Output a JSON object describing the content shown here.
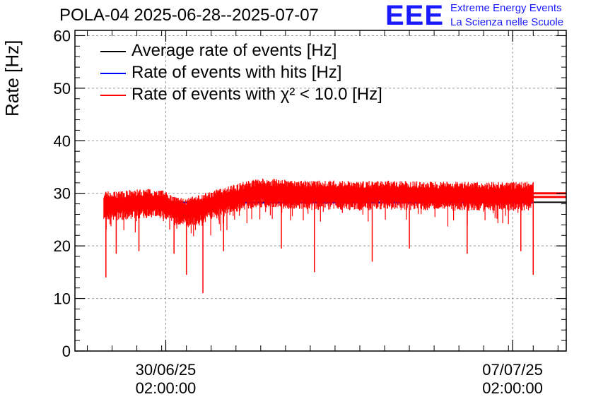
{
  "chart_data": {
    "type": "line",
    "title": "POLA-04 2025-06-28--2025-07-07",
    "ylabel": "Rate [Hz]",
    "xlabel": "",
    "ylim": [
      0,
      61
    ],
    "y_ticks": [
      "0",
      "10",
      "20",
      "30",
      "40",
      "50",
      "60"
    ],
    "x_ticks": [
      {
        "date": "30/06/25",
        "time": "02:00:00",
        "value": "2025-06-30T02:00:00"
      },
      {
        "date": "07/07/25",
        "time": "02:00:00",
        "value": "2025-07-07T02:00:00"
      }
    ],
    "xlim": [
      "2025-06-28T06:00:00",
      "2025-07-08T04:00:00"
    ],
    "grid": true,
    "legend_position": "top-left",
    "series": [
      {
        "name": "Average rate of events [Hz]",
        "color": "#000000",
        "values": [
          {
            "x": "2025-06-28T20:00:00",
            "y": 28.3
          },
          {
            "x": "2025-07-08T04:00:00",
            "y": 28.3
          }
        ]
      },
      {
        "name": "Rate of events with hits [Hz]",
        "color": "#0000ff",
        "values": [
          {
            "x": "2025-06-28T20:00:00",
            "y": 28.2
          },
          {
            "x": "2025-07-07T12:00:00",
            "y": 28.2
          }
        ]
      },
      {
        "name": "Rate of events with χ² < 10.0 [Hz]",
        "color": "#ff0000",
        "values": [
          {
            "x": "2025-06-28T20:00:00",
            "y": 28.0
          },
          {
            "x": "2025-06-29T00:00:00",
            "y": 27.8
          },
          {
            "x": "2025-06-29T06:00:00",
            "y": 27.9
          },
          {
            "x": "2025-06-29T12:00:00",
            "y": 28.2
          },
          {
            "x": "2025-06-29T18:00:00",
            "y": 28.3
          },
          {
            "x": "2025-06-30T00:00:00",
            "y": 28.1
          },
          {
            "x": "2025-06-30T06:00:00",
            "y": 26.9
          },
          {
            "x": "2025-06-30T12:00:00",
            "y": 26.4
          },
          {
            "x": "2025-06-30T18:00:00",
            "y": 27.2
          },
          {
            "x": "2025-07-01T00:00:00",
            "y": 27.9
          },
          {
            "x": "2025-07-01T06:00:00",
            "y": 28.5
          },
          {
            "x": "2025-07-01T12:00:00",
            "y": 29.2
          },
          {
            "x": "2025-07-01T18:00:00",
            "y": 29.8
          },
          {
            "x": "2025-07-02T00:00:00",
            "y": 30.3
          },
          {
            "x": "2025-07-02T12:00:00",
            "y": 30.0
          },
          {
            "x": "2025-07-03T00:00:00",
            "y": 29.8
          },
          {
            "x": "2025-07-03T12:00:00",
            "y": 29.9
          },
          {
            "x": "2025-07-04T00:00:00",
            "y": 29.7
          },
          {
            "x": "2025-07-04T12:00:00",
            "y": 29.9
          },
          {
            "x": "2025-07-05T00:00:00",
            "y": 29.8
          },
          {
            "x": "2025-07-05T12:00:00",
            "y": 29.6
          },
          {
            "x": "2025-07-06T00:00:00",
            "y": 29.7
          },
          {
            "x": "2025-07-06T12:00:00",
            "y": 29.5
          },
          {
            "x": "2025-07-07T00:00:00",
            "y": 29.6
          },
          {
            "x": "2025-07-07T12:00:00",
            "y": 29.7
          },
          {
            "x": "2025-07-08T04:00:00",
            "y": 29.7
          }
        ],
        "dips": [
          {
            "x": "2025-06-28T21:00:00",
            "y": 14.0
          },
          {
            "x": "2025-06-29T02:00:00",
            "y": 18.5
          },
          {
            "x": "2025-06-29T13:00:00",
            "y": 19.0
          },
          {
            "x": "2025-06-30T06:00:00",
            "y": 18.5
          },
          {
            "x": "2025-06-30T12:00:00",
            "y": 14.5
          },
          {
            "x": "2025-06-30T20:00:00",
            "y": 11.0
          },
          {
            "x": "2025-07-01T06:00:00",
            "y": 19.0
          },
          {
            "x": "2025-07-02T10:00:00",
            "y": 19.5
          },
          {
            "x": "2025-07-03T02:00:00",
            "y": 15.0
          },
          {
            "x": "2025-07-04T06:00:00",
            "y": 17.0
          },
          {
            "x": "2025-07-05T00:00:00",
            "y": 19.5
          },
          {
            "x": "2025-07-06T04:00:00",
            "y": 18.5
          },
          {
            "x": "2025-07-07T06:00:00",
            "y": 19.0
          },
          {
            "x": "2025-07-07T12:00:00",
            "y": 14.5
          }
        ]
      }
    ]
  },
  "logo": {
    "letters": "EEE",
    "line1": "Extreme Energy Events",
    "line2": "La Scienza nelle Scuole"
  }
}
